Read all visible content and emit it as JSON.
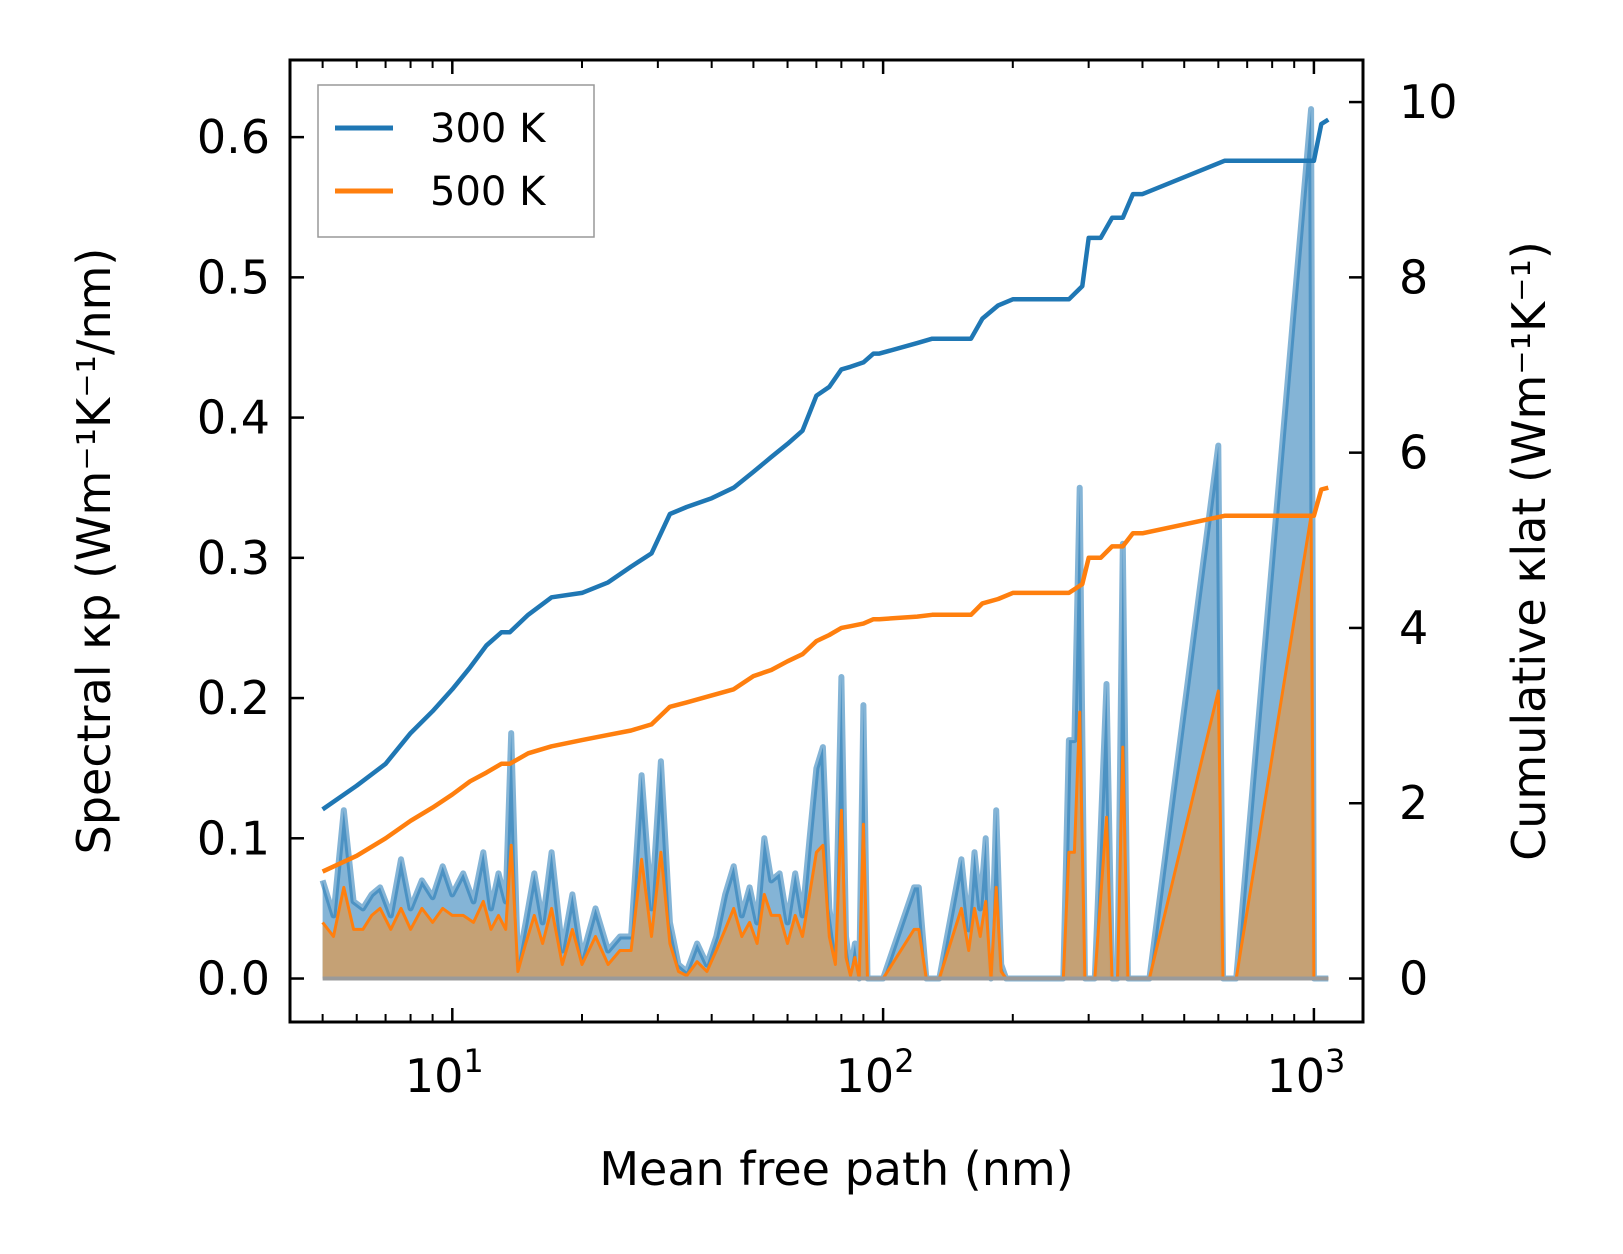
{
  "chart_data": {
    "type": "line",
    "x_scale": "log",
    "xlabel": "Mean free path (nm)",
    "ylabel_left": "Spectral κp (Wm⁻¹K⁻¹/nm)",
    "ylabel_right": "Cumulative κlat (Wm⁻¹K⁻¹)",
    "xlim": [
      4.2,
      1300
    ],
    "ylim_left": [
      -0.031,
      0.655
    ],
    "ylim_right": [
      -0.496,
      10.48
    ],
    "x_ticks": [
      {
        "base": "10",
        "exp": "1",
        "value": 10
      },
      {
        "base": "10",
        "exp": "2",
        "value": 100
      },
      {
        "base": "10",
        "exp": "3",
        "value": 1000
      }
    ],
    "y_ticks_left": [
      "0.0",
      "0.1",
      "0.2",
      "0.3",
      "0.4",
      "0.5",
      "0.6"
    ],
    "y_ticks_right": [
      "0",
      "2",
      "4",
      "6",
      "8",
      "10"
    ],
    "legend": {
      "position": "top-left",
      "entries": [
        "300 K",
        "500 K"
      ]
    },
    "colors": {
      "300 K": "#1f77b4",
      "500 K": "#ff7f0e",
      "fill_300": "#1f77b4",
      "fill_500": "#c8a070"
    },
    "series": [
      {
        "name": "300 K",
        "axis": "right",
        "role": "cumulative",
        "x": [
          5,
          6,
          7,
          8,
          9,
          10,
          11,
          12,
          13,
          13.6,
          15,
          17,
          20,
          23,
          26,
          29,
          32,
          35,
          40,
          45,
          50,
          55,
          60,
          65,
          70,
          75,
          80,
          84,
          90,
          95,
          98,
          120,
          130,
          160,
          170,
          185,
          200,
          270,
          290,
          300,
          320,
          340,
          360,
          380,
          400,
          620,
          650,
          1000,
          1040,
          1080
        ],
        "values": [
          1.93,
          2.2,
          2.45,
          2.8,
          3.05,
          3.3,
          3.55,
          3.8,
          3.95,
          3.95,
          4.15,
          4.35,
          4.4,
          4.52,
          4.7,
          4.85,
          5.3,
          5.38,
          5.48,
          5.6,
          5.78,
          5.95,
          6.1,
          6.25,
          6.65,
          6.75,
          6.95,
          6.98,
          7.03,
          7.13,
          7.13,
          7.25,
          7.3,
          7.3,
          7.53,
          7.68,
          7.75,
          7.75,
          7.9,
          8.45,
          8.45,
          8.68,
          8.68,
          8.95,
          8.95,
          9.33,
          9.33,
          9.33,
          9.75,
          9.8
        ]
      },
      {
        "name": "500 K",
        "axis": "right",
        "role": "cumulative",
        "x": [
          5,
          6,
          7,
          8,
          9,
          10,
          11,
          12,
          13,
          13.6,
          15,
          17,
          20,
          23,
          26,
          29,
          32,
          35,
          40,
          45,
          50,
          55,
          60,
          65,
          70,
          75,
          80,
          84,
          90,
          95,
          98,
          120,
          130,
          160,
          170,
          185,
          200,
          270,
          290,
          300,
          320,
          340,
          360,
          380,
          400,
          620,
          650,
          1000,
          1040,
          1080
        ],
        "values": [
          1.22,
          1.4,
          1.6,
          1.8,
          1.95,
          2.1,
          2.25,
          2.35,
          2.45,
          2.45,
          2.57,
          2.65,
          2.72,
          2.78,
          2.83,
          2.9,
          3.1,
          3.15,
          3.23,
          3.3,
          3.45,
          3.52,
          3.62,
          3.7,
          3.85,
          3.92,
          4.0,
          4.02,
          4.05,
          4.1,
          4.1,
          4.13,
          4.15,
          4.15,
          4.28,
          4.33,
          4.4,
          4.4,
          4.5,
          4.8,
          4.8,
          4.93,
          4.93,
          5.08,
          5.08,
          5.28,
          5.28,
          5.28,
          5.58,
          5.6
        ]
      },
      {
        "name": "300 K spectral",
        "axis": "left",
        "role": "spectral-fill",
        "x": [
          5,
          5.3,
          5.6,
          5.9,
          6.2,
          6.5,
          6.8,
          7.2,
          7.6,
          8,
          8.5,
          9,
          9.5,
          10,
          10.6,
          11.2,
          11.8,
          12.3,
          12.8,
          13.3,
          13.7,
          14.2,
          14.8,
          15.5,
          16.2,
          17,
          18,
          19,
          20,
          21.5,
          23,
          24.5,
          26,
          27.5,
          29,
          30.5,
          32,
          33.5,
          35,
          37,
          39,
          41,
          43,
          45,
          47,
          49,
          51,
          53,
          55,
          57.5,
          60,
          62.5,
          65,
          67.5,
          70,
          72.5,
          75,
          77.5,
          80,
          82,
          84,
          86,
          88,
          90,
          92,
          94,
          96,
          98,
          100,
          118,
          121,
          126,
          130,
          135,
          152,
          158,
          163,
          168,
          173,
          178,
          183,
          188,
          193,
          198,
          262,
          270,
          278,
          286,
          294,
          302,
          310,
          330,
          340,
          350,
          360,
          370,
          385,
          395,
          400,
          415,
          600,
          615,
          630,
          645,
          660,
          985,
          1000,
          1015,
          1030,
          1045,
          1060,
          1080
        ],
        "values": [
          0.07,
          0.045,
          0.12,
          0.055,
          0.05,
          0.06,
          0.065,
          0.045,
          0.085,
          0.05,
          0.07,
          0.058,
          0.08,
          0.06,
          0.075,
          0.055,
          0.09,
          0.05,
          0.075,
          0.055,
          0.175,
          0.01,
          0.04,
          0.075,
          0.04,
          0.09,
          0.02,
          0.06,
          0.015,
          0.05,
          0.02,
          0.03,
          0.03,
          0.145,
          0.05,
          0.155,
          0.04,
          0.01,
          0.005,
          0.025,
          0.01,
          0.03,
          0.06,
          0.08,
          0.045,
          0.065,
          0.04,
          0.1,
          0.07,
          0.075,
          0.04,
          0.075,
          0.045,
          0.1,
          0.15,
          0.165,
          0.05,
          0.02,
          0.215,
          0.03,
          0.005,
          0.025,
          0.0,
          0.195,
          0.0,
          0.0,
          0.0,
          0.0,
          0.0,
          0.065,
          0.065,
          0.0,
          0.0,
          0.0,
          0.085,
          0.035,
          0.09,
          0.05,
          0.1,
          0.0,
          0.12,
          0.01,
          0.0,
          0.0,
          0.0,
          0.17,
          0.17,
          0.35,
          0.0,
          0.0,
          0.0,
          0.21,
          0.0,
          0.0,
          0.31,
          0.0,
          0.0,
          0.0,
          0.0,
          0.0,
          0.38,
          0.0,
          0.0,
          0.0,
          0.0,
          0.62,
          0.0,
          0.0,
          0.0,
          0.0,
          0.0,
          0.0
        ]
      },
      {
        "name": "500 K spectral",
        "axis": "left",
        "role": "spectral-fill",
        "x": [
          5,
          5.3,
          5.6,
          5.9,
          6.2,
          6.5,
          6.8,
          7.2,
          7.6,
          8,
          8.5,
          9,
          9.5,
          10,
          10.6,
          11.2,
          11.8,
          12.3,
          12.8,
          13.3,
          13.7,
          14.2,
          14.8,
          15.5,
          16.2,
          17,
          18,
          19,
          20,
          21.5,
          23,
          24.5,
          26,
          27.5,
          29,
          30.5,
          32,
          33.5,
          35,
          37,
          39,
          41,
          43,
          45,
          47,
          49,
          51,
          53,
          55,
          57.5,
          60,
          62.5,
          65,
          67.5,
          70,
          72.5,
          75,
          77.5,
          80,
          82,
          84,
          86,
          88,
          90,
          92,
          94,
          96,
          98,
          100,
          118,
          121,
          126,
          130,
          135,
          152,
          158,
          163,
          168,
          173,
          178,
          183,
          188,
          193,
          198,
          262,
          270,
          278,
          286,
          294,
          302,
          310,
          330,
          340,
          350,
          360,
          370,
          385,
          395,
          400,
          415,
          600,
          615,
          630,
          645,
          660,
          985,
          1000,
          1015,
          1030,
          1045,
          1060,
          1080
        ],
        "values": [
          0.04,
          0.03,
          0.065,
          0.035,
          0.035,
          0.045,
          0.05,
          0.035,
          0.05,
          0.035,
          0.05,
          0.04,
          0.05,
          0.045,
          0.045,
          0.04,
          0.055,
          0.035,
          0.045,
          0.035,
          0.095,
          0.005,
          0.025,
          0.045,
          0.025,
          0.05,
          0.01,
          0.035,
          0.01,
          0.03,
          0.01,
          0.02,
          0.02,
          0.085,
          0.03,
          0.09,
          0.025,
          0.005,
          0.002,
          0.012,
          0.005,
          0.02,
          0.035,
          0.05,
          0.03,
          0.04,
          0.025,
          0.06,
          0.045,
          0.045,
          0.025,
          0.045,
          0.03,
          0.06,
          0.09,
          0.095,
          0.03,
          0.01,
          0.12,
          0.015,
          0.002,
          0.015,
          0.0,
          0.11,
          0.0,
          0.0,
          0.0,
          0.0,
          0.0,
          0.035,
          0.035,
          0.0,
          0.0,
          0.0,
          0.05,
          0.02,
          0.05,
          0.03,
          0.055,
          0.0,
          0.065,
          0.005,
          0.0,
          0.0,
          0.0,
          0.09,
          0.09,
          0.19,
          0.0,
          0.0,
          0.0,
          0.115,
          0.0,
          0.0,
          0.165,
          0.0,
          0.0,
          0.0,
          0.0,
          0.0,
          0.205,
          0.0,
          0.0,
          0.0,
          0.0,
          0.33,
          0.0,
          0.0,
          0.0,
          0.0,
          0.0,
          0.0
        ]
      }
    ]
  }
}
